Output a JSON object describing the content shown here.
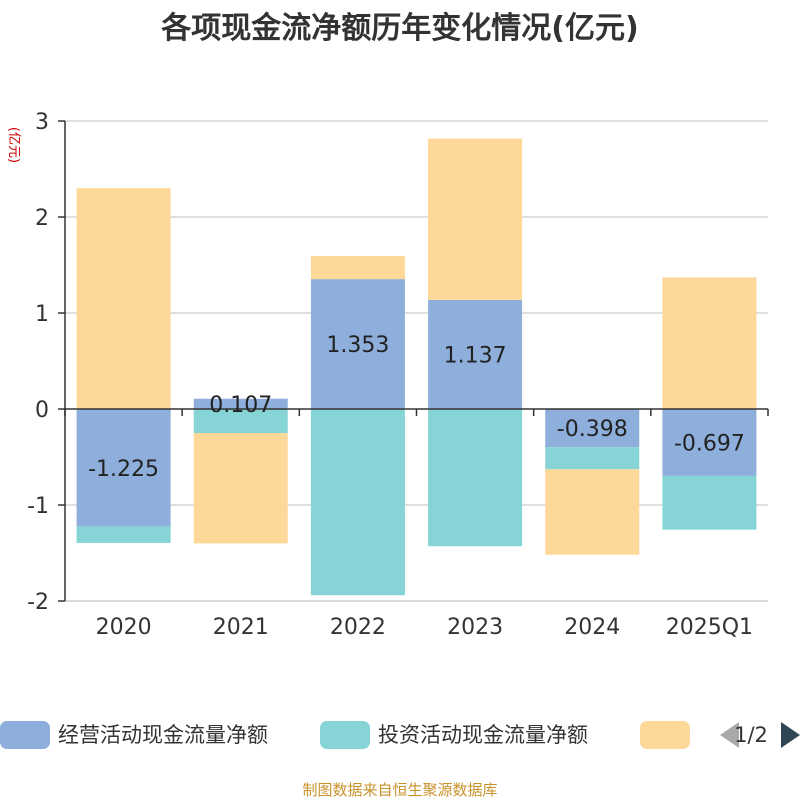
{
  "chart_data": {
    "type": "bar",
    "stacked": true,
    "title": "各项现金流净额历年变化情况(亿元)",
    "ylabel": "(亿元)",
    "categories": [
      "2020",
      "2021",
      "2022",
      "2023",
      "2024",
      "2025Q1"
    ],
    "ylim": [
      -2,
      3
    ],
    "yticks": [
      -2,
      -1,
      0,
      1,
      2,
      3
    ],
    "grid": true,
    "series": [
      {
        "name": "经营活动现金流量净额",
        "color": "#8eaedb",
        "values": [
          -1.225,
          0.107,
          1.353,
          1.137,
          -0.398,
          -0.697
        ],
        "labels": [
          "-1.225",
          "0.107",
          "1.353",
          "1.137",
          "-0.398",
          "-0.697"
        ]
      },
      {
        "name": "投资活动现金流量净额",
        "color": "#86d4d6",
        "values": [
          -0.17,
          -0.25,
          -1.94,
          -1.43,
          -0.23,
          -0.56
        ]
      },
      {
        "name": "",
        "color": "#fdd898",
        "values": [
          2.3,
          -1.15,
          0.24,
          1.68,
          -0.89,
          1.37
        ]
      }
    ],
    "legend": {
      "position": "bottom",
      "page": "1/2"
    }
  },
  "source": "制图数据来自恒生聚源数据库"
}
